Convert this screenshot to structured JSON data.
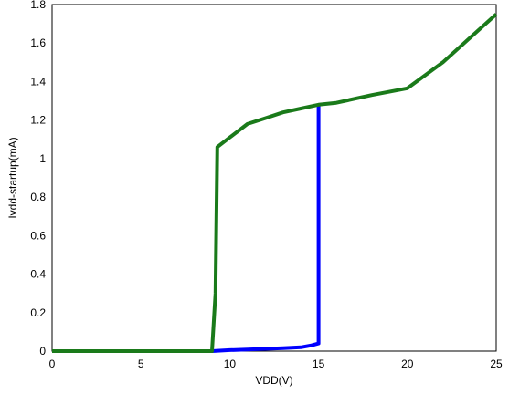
{
  "chart_data": {
    "type": "line",
    "title": "",
    "xlabel": "VDD(V)",
    "ylabel": "Ivdd-startup(mA)",
    "xlim": [
      0,
      25
    ],
    "ylim": [
      0,
      1.8
    ],
    "xticks": [
      0,
      5,
      10,
      15,
      20,
      25
    ],
    "xtick_labels": [
      "0",
      "5",
      "10",
      "15",
      "20",
      "25"
    ],
    "yticks": [
      0,
      0.2,
      0.4,
      0.6,
      0.8,
      1.0,
      1.2,
      1.4,
      1.6,
      1.8
    ],
    "ytick_labels": [
      "0",
      "0.2",
      "0.4",
      "0.6",
      "0.8",
      "1",
      "1.2",
      "1.4",
      "1.6",
      "1.8"
    ],
    "grid": true,
    "legend": "none",
    "series": [
      {
        "color": "#0000ff",
        "x": [
          0,
          9.0,
          10.0,
          11.0,
          12.0,
          13.0,
          14.0,
          14.6,
          15.0,
          15.0
        ],
        "y": [
          0,
          0,
          0.005,
          0.008,
          0.012,
          0.015,
          0.02,
          0.03,
          0.04,
          1.28
        ]
      },
      {
        "color": "#1a7a1a",
        "x": [
          0,
          9.0,
          9.2,
          9.3,
          10.0,
          11.0,
          12.0,
          13.0,
          14.0,
          15.0,
          16.0,
          18.0,
          20.0,
          22.0,
          25.0
        ],
        "y": [
          0,
          0,
          0.3,
          1.06,
          1.11,
          1.18,
          1.21,
          1.24,
          1.26,
          1.28,
          1.29,
          1.33,
          1.365,
          1.5,
          1.75
        ]
      }
    ]
  }
}
